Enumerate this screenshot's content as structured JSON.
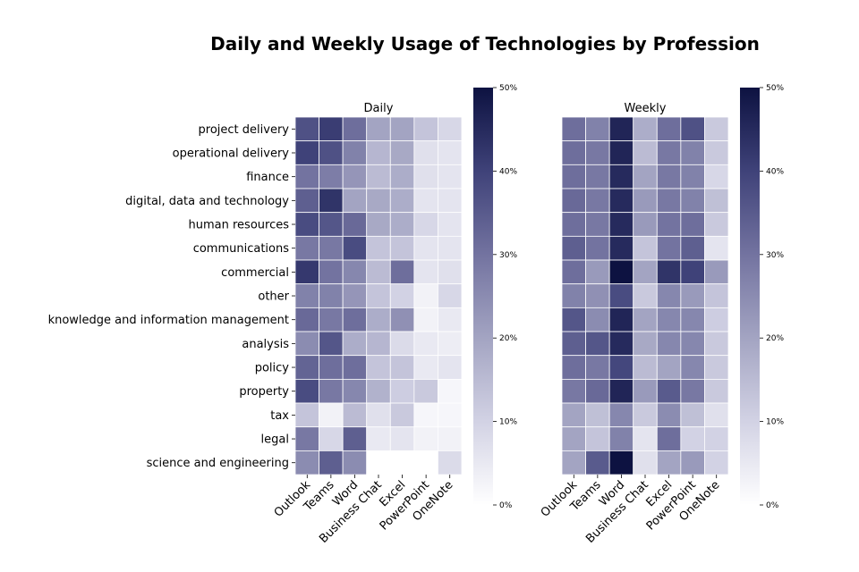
{
  "title": "Daily and Weekly Usage of Technologies by Profession",
  "colorbar": {
    "ticks": [
      "0%",
      "10%",
      "20%",
      "30%",
      "40%",
      "50%"
    ],
    "color_low": "#ffffff",
    "color_high": "#0d1241"
  },
  "chart_data": [
    {
      "type": "heatmap",
      "title": "Daily",
      "rows": [
        "project delivery",
        "operational delivery",
        "finance",
        "digital, data and technology",
        "human resources",
        "communications",
        "commercial",
        "other",
        "knowledge and information management",
        "analysis",
        "policy",
        "property",
        "tax",
        "legal",
        "science and engineering"
      ],
      "columns": [
        "Outlook",
        "Teams",
        "Word",
        "Business Chat",
        "Excel",
        "PowerPoint",
        "OneNote"
      ],
      "values": [
        [
          37,
          41,
          31,
          20,
          20,
          13,
          9
        ],
        [
          40,
          37,
          27,
          16,
          19,
          7,
          6
        ],
        [
          30,
          28,
          23,
          15,
          18,
          7,
          6
        ],
        [
          34,
          43,
          20,
          19,
          18,
          6,
          6
        ],
        [
          38,
          36,
          32,
          19,
          18,
          9,
          6
        ],
        [
          29,
          29,
          38,
          13,
          13,
          6,
          6
        ],
        [
          42,
          30,
          26,
          15,
          31,
          6,
          7
        ],
        [
          27,
          27,
          23,
          13,
          10,
          3,
          9
        ],
        [
          32,
          29,
          31,
          18,
          24,
          3,
          5
        ],
        [
          25,
          36,
          18,
          16,
          8,
          5,
          4
        ],
        [
          33,
          31,
          31,
          13,
          13,
          5,
          6
        ],
        [
          38,
          29,
          26,
          17,
          11,
          12,
          2
        ],
        [
          13,
          3,
          15,
          7,
          12,
          2,
          2
        ],
        [
          29,
          9,
          34,
          5,
          6,
          3,
          3
        ],
        [
          25,
          34,
          25,
          0,
          0,
          0,
          8
        ]
      ],
      "vmin": 0,
      "vmax": 50
    },
    {
      "type": "heatmap",
      "title": "Weekly",
      "rows": [
        "project delivery",
        "operational delivery",
        "finance",
        "digital, data and technology",
        "human resources",
        "communications",
        "commercial",
        "other",
        "knowledge and information management",
        "analysis",
        "policy",
        "property",
        "tax",
        "legal",
        "science and engineering"
      ],
      "columns": [
        "Outlook",
        "Teams",
        "Word",
        "Business Chat",
        "Excel",
        "PowerPoint",
        "OneNote"
      ],
      "values": [
        [
          31,
          27,
          46,
          18,
          31,
          37,
          12
        ],
        [
          31,
          29,
          46,
          15,
          29,
          27,
          12
        ],
        [
          31,
          29,
          45,
          20,
          29,
          27,
          9
        ],
        [
          32,
          29,
          45,
          22,
          29,
          27,
          14
        ],
        [
          31,
          29,
          45,
          22,
          30,
          31,
          12
        ],
        [
          34,
          30,
          45,
          13,
          30,
          34,
          6
        ],
        [
          31,
          22,
          50,
          20,
          43,
          40,
          22
        ],
        [
          27,
          24,
          38,
          12,
          26,
          22,
          13
        ],
        [
          36,
          25,
          46,
          20,
          26,
          26,
          11
        ],
        [
          34,
          36,
          45,
          19,
          26,
          26,
          12
        ],
        [
          31,
          29,
          39,
          15,
          20,
          26,
          12
        ],
        [
          29,
          32,
          46,
          22,
          35,
          29,
          12
        ],
        [
          20,
          14,
          26,
          12,
          25,
          14,
          7
        ],
        [
          20,
          13,
          27,
          6,
          31,
          10,
          10
        ],
        [
          20,
          35,
          50,
          7,
          20,
          22,
          10
        ]
      ],
      "vmin": 0,
      "vmax": 50
    }
  ]
}
